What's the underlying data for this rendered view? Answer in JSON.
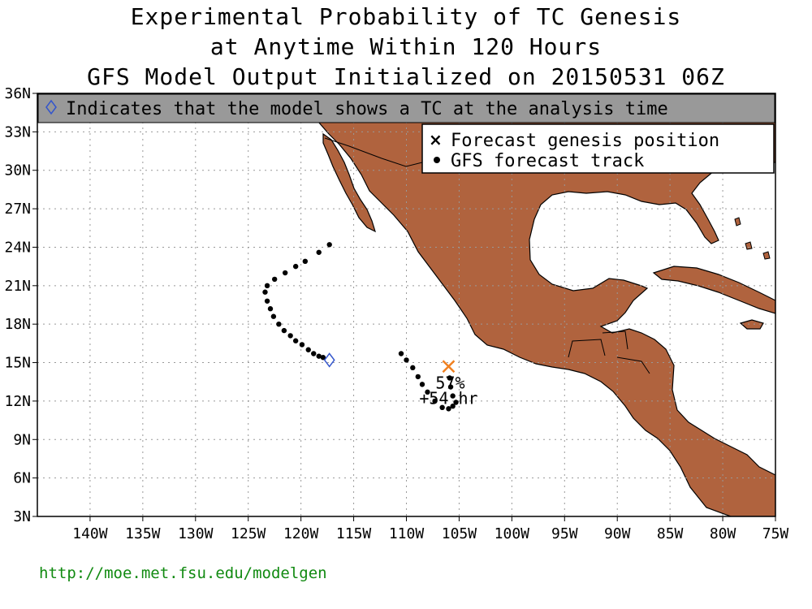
{
  "title": {
    "line1": "Experimental Probability of TC Genesis",
    "line2": "at Anytime Within 120 Hours",
    "line3": "GFS Model Output Initialized on 20150531 06Z"
  },
  "analysis_banner": {
    "icon": "diamond-icon",
    "text": "Indicates that the model shows a TC at the analysis time"
  },
  "legend": {
    "genesis_label": "Forecast genesis position",
    "track_label": "GFS forecast track"
  },
  "axes": {
    "lon_ticks": [
      "140W",
      "135W",
      "130W",
      "125W",
      "120W",
      "115W",
      "110W",
      "105W",
      "100W",
      "95W",
      "90W",
      "85W",
      "80W",
      "75W"
    ],
    "lat_ticks": [
      "36N",
      "33N",
      "30N",
      "27N",
      "24N",
      "21N",
      "18N",
      "15N",
      "12N",
      "9N",
      "6N",
      "3N"
    ],
    "lon_range": [
      -145,
      -75
    ],
    "lat_range": [
      3,
      36
    ],
    "grid": true
  },
  "genesis": {
    "probability": "57%",
    "lead_time": "+54 hr",
    "lon": -106.0,
    "lat": 14.7
  },
  "analysis_diamond": {
    "lon": -117.3,
    "lat": 15.2
  },
  "tracks": {
    "west_track": [
      [
        -117.3,
        24.2
      ],
      [
        -118.3,
        23.6
      ],
      [
        -119.6,
        22.9
      ],
      [
        -120.5,
        22.5
      ],
      [
        -121.5,
        22.0
      ],
      [
        -122.5,
        21.5
      ],
      [
        -123.2,
        21.0
      ],
      [
        -123.4,
        20.5
      ],
      [
        -123.2,
        19.8
      ],
      [
        -122.9,
        19.2
      ],
      [
        -122.6,
        18.6
      ],
      [
        -122.1,
        18.0
      ],
      [
        -121.6,
        17.5
      ],
      [
        -121.0,
        17.1
      ],
      [
        -120.5,
        16.7
      ],
      [
        -119.9,
        16.4
      ],
      [
        -119.3,
        16.0
      ],
      [
        -118.8,
        15.7
      ],
      [
        -118.3,
        15.5
      ],
      [
        -117.9,
        15.4
      ]
    ],
    "east_track": [
      [
        -110.5,
        15.7
      ],
      [
        -110.0,
        15.2
      ],
      [
        -109.4,
        14.6
      ],
      [
        -108.9,
        13.9
      ],
      [
        -108.5,
        13.3
      ],
      [
        -108.0,
        12.7
      ],
      [
        -107.3,
        12.0
      ],
      [
        -106.6,
        11.5
      ],
      [
        -106.0,
        11.4
      ],
      [
        -105.6,
        11.6
      ],
      [
        -105.3,
        11.9
      ],
      [
        -105.6,
        12.4
      ],
      [
        -105.8,
        13.1
      ],
      [
        -105.9,
        13.8
      ]
    ]
  },
  "colors": {
    "land": "#b0633e",
    "banner": "#999999",
    "diamond": "#3355cc",
    "genesis": "#f08020",
    "url": "#118a11"
  },
  "footer": {
    "url": "http://moe.met.fsu.edu/modelgen"
  }
}
